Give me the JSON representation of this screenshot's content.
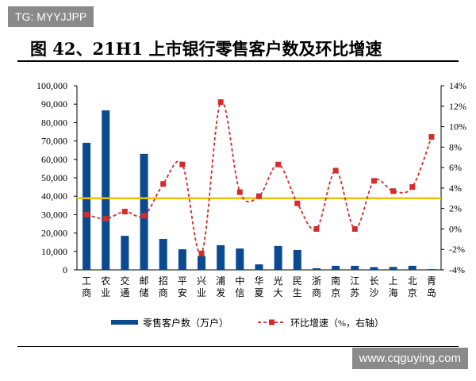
{
  "watermark_top": "TG: MYYJJPP",
  "watermark_bottom": "www.cqguying.com",
  "title": "图 42、21H1 上市银行零售客户数及环比增速",
  "chart_data": {
    "type": "bar+line",
    "categories": [
      "工商",
      "农业",
      "交通",
      "邮储",
      "招商",
      "平安",
      "兴业",
      "浦发",
      "中信",
      "华夏",
      "光大",
      "民生",
      "浙商",
      "南京",
      "江苏",
      "长沙",
      "上海",
      "北京",
      "青岛"
    ],
    "series": [
      {
        "name": "零售客户数（万户）",
        "type": "bar",
        "axis": "left",
        "color": "#0b4a8f",
        "values": [
          69000,
          86600,
          18500,
          63000,
          16800,
          11200,
          7500,
          13400,
          11600,
          3000,
          13000,
          10800,
          900,
          2200,
          2200,
          1500,
          1600,
          2200,
          400
        ]
      },
      {
        "name": "环比增速（%，右轴）",
        "type": "line",
        "axis": "right",
        "color": "#d62b2b",
        "values": [
          1.4,
          1.0,
          1.7,
          1.3,
          4.4,
          6.3,
          -2.4,
          12.4,
          3.6,
          3.2,
          6.3,
          2.5,
          0.0,
          5.7,
          0.0,
          4.7,
          3.7,
          4.1,
          9.0
        ]
      }
    ],
    "reference_line": {
      "axis": "right",
      "value": 3.0,
      "color": "#f2c200"
    },
    "left_axis": {
      "ylim": [
        0,
        100000
      ],
      "ticks": [
        "0",
        "10,000",
        "20,000",
        "30,000",
        "40,000",
        "50,000",
        "60,000",
        "70,000",
        "80,000",
        "90,000",
        "100,000"
      ]
    },
    "right_axis": {
      "ylim": [
        -4,
        14
      ],
      "ticks": [
        "-4%",
        "-2%",
        "0%",
        "2%",
        "4%",
        "6%",
        "8%",
        "10%",
        "12%",
        "14%"
      ]
    },
    "legend_position": "bottom",
    "grid": false
  }
}
